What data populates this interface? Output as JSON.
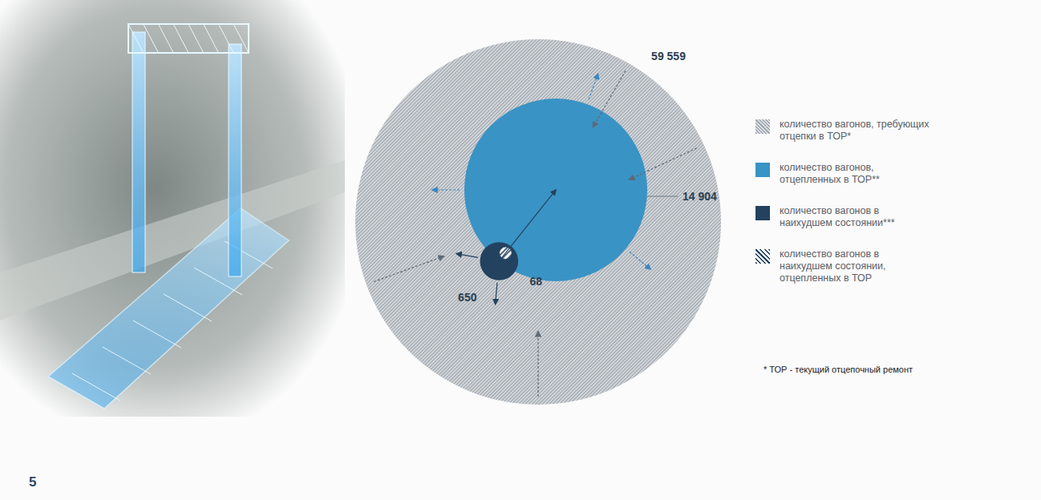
{
  "chart_data": {
    "type": "bubble",
    "categories": [
      "количество вагонов, требующих отцепки в ТОР*",
      "количество вагонов, отцепленных в ТОР**",
      "количество вагонов в наихудшем состоянии***",
      "количество вагонов в наихудшем состоянии, отцепленных в ТОР"
    ],
    "values": [
      59559,
      14904,
      650,
      68
    ],
    "value_labels": [
      "59 559",
      "14 904",
      "650",
      "68"
    ],
    "colors": [
      "#a3aab1",
      "#3993c4",
      "#23425f",
      "#23425f"
    ],
    "data_labels": true,
    "legend": "right",
    "footnote": "* ТОР - текущий отцепочный ремонт"
  },
  "page_number": "5"
}
